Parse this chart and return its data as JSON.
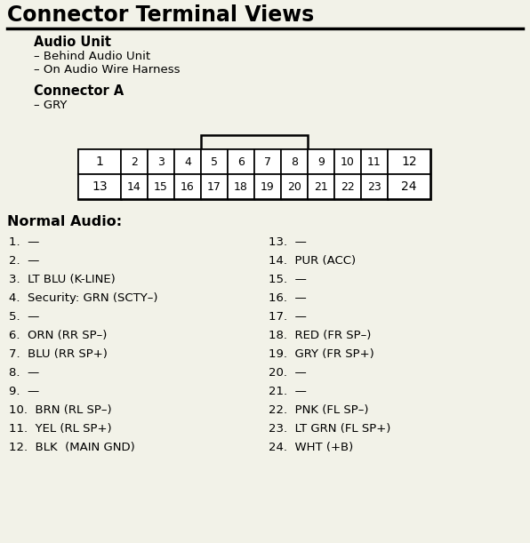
{
  "title": "Connector Terminal Views",
  "bg_color": "#f2f2e8",
  "subtitle1": "Audio Unit",
  "subtitle1_items": [
    "– Behind Audio Unit",
    "– On Audio Wire Harness"
  ],
  "subtitle2": "Connector A",
  "subtitle2_items": [
    "– GRY"
  ],
  "section3": "Normal Audio:",
  "left_pins": [
    "1.  —",
    "2.  —",
    "3.  LT BLU (K-LINE)",
    "4.  Security: GRN (SCTY–)",
    "5.  —",
    "6.  ORN (RR SP–)",
    "7.  BLU (RR SP+)",
    "8.  —",
    "9.  —",
    "10.  BRN (RL SP–)",
    "11.  YEL (RL SP+)",
    "12.  BLK  (MAIN GND)"
  ],
  "right_pins": [
    "13.  —",
    "14.  PUR (ACC)",
    "15.  —",
    "16.  —",
    "17.  —",
    "18.  RED (FR SP–)",
    "19.  GRY (FR SP+)",
    "20.  —",
    "21.  —",
    "22.  PNK (FL SP–)",
    "23.  LT GRN (FL SP+)",
    "24.  WHT (+B)"
  ]
}
